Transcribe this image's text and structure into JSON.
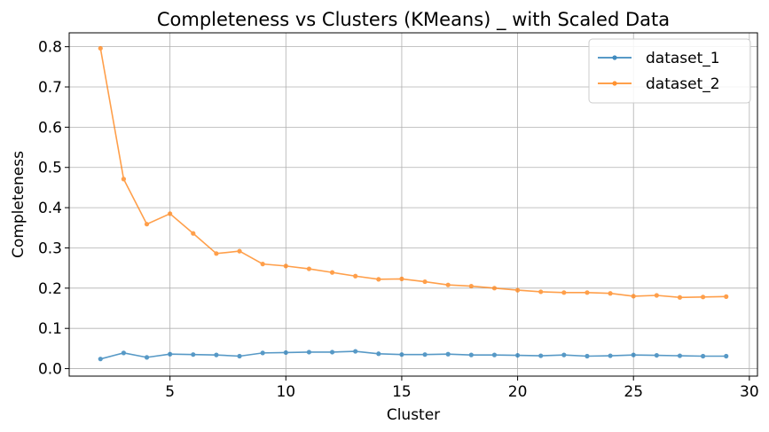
{
  "chart_data": {
    "type": "line",
    "title": "Completeness vs Clusters (KMeans) _ with Scaled Data",
    "xlabel": "Cluster",
    "ylabel": "Completeness",
    "xlim": [
      0.65,
      30.35
    ],
    "ylim": [
      -0.0186,
      0.8345
    ],
    "xticks": [
      5,
      10,
      15,
      20,
      25,
      30
    ],
    "yticks": [
      0.0,
      0.1,
      0.2,
      0.3,
      0.4,
      0.5,
      0.6,
      0.7,
      0.8
    ],
    "ytick_labels": [
      "0.0",
      "0.1",
      "0.2",
      "0.3",
      "0.4",
      "0.5",
      "0.6",
      "0.7",
      "0.8"
    ],
    "grid": true,
    "legend_position": "top-right",
    "x": [
      2,
      3,
      4,
      5,
      6,
      7,
      8,
      9,
      10,
      11,
      12,
      13,
      14,
      15,
      16,
      17,
      18,
      19,
      20,
      21,
      22,
      23,
      24,
      25,
      26,
      27,
      28,
      29
    ],
    "series": [
      {
        "name": "dataset_1",
        "color": "#1f77b4",
        "values": [
          0.024,
          0.039,
          0.028,
          0.036,
          0.035,
          0.034,
          0.031,
          0.039,
          0.04,
          0.041,
          0.041,
          0.043,
          0.037,
          0.035,
          0.035,
          0.036,
          0.034,
          0.034,
          0.033,
          0.032,
          0.034,
          0.031,
          0.032,
          0.034,
          0.033,
          0.032,
          0.031,
          0.031
        ]
      },
      {
        "name": "dataset_2",
        "color": "#ff7f0e",
        "values": [
          0.796,
          0.471,
          0.359,
          0.385,
          0.336,
          0.286,
          0.292,
          0.26,
          0.255,
          0.248,
          0.239,
          0.23,
          0.222,
          0.223,
          0.216,
          0.208,
          0.205,
          0.2,
          0.195,
          0.191,
          0.189,
          0.189,
          0.187,
          0.18,
          0.182,
          0.177,
          0.178,
          0.179
        ]
      }
    ]
  }
}
